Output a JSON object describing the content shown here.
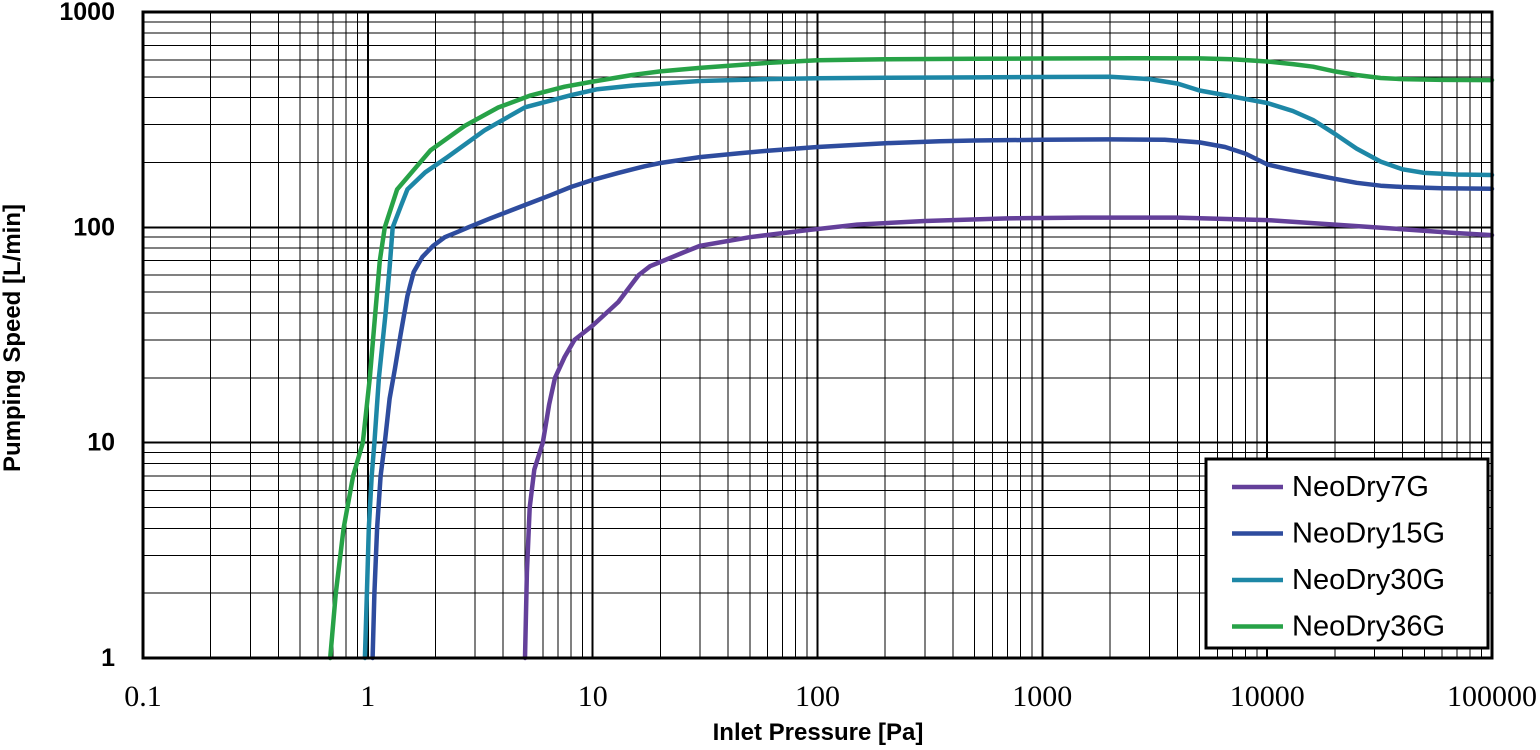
{
  "figure": {
    "background": "#ffffff",
    "grid": {
      "color": "#000000",
      "minor": true,
      "major": true
    },
    "axes": {
      "x": {
        "label": "Inlet Pressure [Pa]",
        "scale": "log",
        "min": 0.1,
        "max": 100000,
        "ticks": [
          "0.1",
          "1",
          "10",
          "100",
          "1000",
          "10000",
          "100000"
        ]
      },
      "y": {
        "label": "Pumping Speed [L/min]",
        "scale": "log",
        "min": 1,
        "max": 1000,
        "ticks": [
          "1",
          "10",
          "100",
          "1000"
        ]
      }
    },
    "legend": {
      "position": "bottom-right-inset",
      "entries": [
        "NeoDry7G",
        "NeoDry15G",
        "NeoDry30G",
        "NeoDry36G"
      ]
    }
  },
  "chart_data": {
    "type": "line",
    "title": "",
    "xlabel": "Inlet Pressure [Pa]",
    "ylabel": "Pumping Speed [L/min]",
    "x_scale": "log",
    "y_scale": "log",
    "xlim": [
      0.1,
      100000
    ],
    "ylim": [
      1,
      1000
    ],
    "grid": "full log grid, black major and minor lines",
    "legend_position": "bottom-right inset box",
    "series": [
      {
        "name": "NeoDry7G",
        "color": "#64409A",
        "points": [
          [
            5,
            1
          ],
          [
            5.1,
            2.5
          ],
          [
            5.25,
            5
          ],
          [
            5.5,
            7.5
          ],
          [
            6,
            10
          ],
          [
            6.4,
            15
          ],
          [
            6.8,
            20
          ],
          [
            7.5,
            25
          ],
          [
            8.3,
            30
          ],
          [
            10,
            35
          ],
          [
            13,
            45
          ],
          [
            16,
            60
          ],
          [
            18,
            66
          ],
          [
            20,
            69
          ],
          [
            25,
            76
          ],
          [
            30,
            82
          ],
          [
            50,
            90
          ],
          [
            70,
            94
          ],
          [
            90,
            97
          ],
          [
            150,
            103
          ],
          [
            300,
            107
          ],
          [
            700,
            110
          ],
          [
            1500,
            111
          ],
          [
            4000,
            111
          ],
          [
            10000,
            108
          ],
          [
            20000,
            103
          ],
          [
            40000,
            98
          ],
          [
            70000,
            94
          ],
          [
            100000,
            92
          ]
        ]
      },
      {
        "name": "NeoDry15G",
        "color": "#2E4C9E",
        "points": [
          [
            1.05,
            1
          ],
          [
            1.07,
            2
          ],
          [
            1.1,
            4
          ],
          [
            1.14,
            7
          ],
          [
            1.19,
            10
          ],
          [
            1.25,
            16
          ],
          [
            1.32,
            22
          ],
          [
            1.4,
            32
          ],
          [
            1.5,
            48
          ],
          [
            1.6,
            62
          ],
          [
            1.75,
            73
          ],
          [
            1.95,
            82
          ],
          [
            2.2,
            90
          ],
          [
            2.5,
            95
          ],
          [
            2.8,
            100
          ],
          [
            3.5,
            110
          ],
          [
            5,
            127
          ],
          [
            6.5,
            141
          ],
          [
            8,
            154
          ],
          [
            10,
            166
          ],
          [
            13,
            179
          ],
          [
            17,
            192
          ],
          [
            20,
            199
          ],
          [
            30,
            212
          ],
          [
            45,
            221
          ],
          [
            60,
            227
          ],
          [
            100,
            236
          ],
          [
            200,
            246
          ],
          [
            350,
            251
          ],
          [
            500,
            253
          ],
          [
            1000,
            255
          ],
          [
            2000,
            256
          ],
          [
            3500,
            255
          ],
          [
            5000,
            248
          ],
          [
            6500,
            236
          ],
          [
            8000,
            220
          ],
          [
            10000,
            196
          ],
          [
            13000,
            184
          ],
          [
            16000,
            176
          ],
          [
            20000,
            168
          ],
          [
            25000,
            161
          ],
          [
            32000,
            156
          ],
          [
            40000,
            154
          ],
          [
            60000,
            152
          ],
          [
            100000,
            151
          ]
        ]
      },
      {
        "name": "NeoDry30G",
        "color": "#1D87A6",
        "points": [
          [
            0.97,
            1
          ],
          [
            0.99,
            2
          ],
          [
            1.01,
            4
          ],
          [
            1.04,
            7
          ],
          [
            1.07,
            10
          ],
          [
            1.12,
            20
          ],
          [
            1.2,
            40
          ],
          [
            1.25,
            65
          ],
          [
            1.29,
            100
          ],
          [
            1.4,
            125
          ],
          [
            1.5,
            150
          ],
          [
            1.8,
            180
          ],
          [
            2.26,
            212
          ],
          [
            3.3,
            282
          ],
          [
            5,
            361
          ],
          [
            8,
            411
          ],
          [
            10.5,
            438
          ],
          [
            15,
            455
          ],
          [
            20,
            465
          ],
          [
            30,
            478
          ],
          [
            60,
            488
          ],
          [
            100,
            492
          ],
          [
            200,
            495
          ],
          [
            500,
            497
          ],
          [
            1000,
            499
          ],
          [
            2000,
            500
          ],
          [
            3000,
            488
          ],
          [
            4000,
            465
          ],
          [
            5000,
            432
          ],
          [
            7000,
            405
          ],
          [
            10000,
            378
          ],
          [
            13000,
            347
          ],
          [
            16000,
            315
          ],
          [
            20000,
            272
          ],
          [
            25000,
            232
          ],
          [
            32000,
            202
          ],
          [
            40000,
            186
          ],
          [
            50000,
            179
          ],
          [
            70000,
            176
          ],
          [
            100000,
            175
          ]
        ]
      },
      {
        "name": "NeoDry36G",
        "color": "#27A247",
        "points": [
          [
            0.68,
            1
          ],
          [
            0.72,
            2
          ],
          [
            0.78,
            4
          ],
          [
            0.86,
            7
          ],
          [
            0.95,
            10
          ],
          [
            0.99,
            15
          ],
          [
            1.02,
            20
          ],
          [
            1.08,
            40
          ],
          [
            1.13,
            70
          ],
          [
            1.19,
            100
          ],
          [
            1.35,
            150
          ],
          [
            1.9,
            228
          ],
          [
            2.7,
            296
          ],
          [
            3.8,
            360
          ],
          [
            5.3,
            410
          ],
          [
            7.5,
            450
          ],
          [
            10,
            475
          ],
          [
            15,
            510
          ],
          [
            20,
            530
          ],
          [
            30,
            550
          ],
          [
            60,
            580
          ],
          [
            100,
            597
          ],
          [
            200,
            603
          ],
          [
            500,
            607
          ],
          [
            1000,
            608
          ],
          [
            2500,
            610
          ],
          [
            5000,
            609
          ],
          [
            7000,
            604
          ],
          [
            10000,
            589
          ],
          [
            13000,
            573
          ],
          [
            16000,
            557
          ],
          [
            20000,
            530
          ],
          [
            25000,
            510
          ],
          [
            32000,
            494
          ],
          [
            40000,
            488
          ],
          [
            60000,
            484
          ],
          [
            100000,
            483
          ]
        ]
      }
    ]
  }
}
